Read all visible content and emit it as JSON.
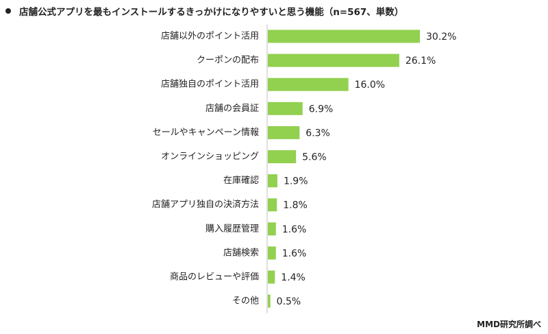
{
  "chart_data": {
    "type": "bar",
    "orientation": "horizontal",
    "title": "店舗公式アプリを最もインストールするきっかけになりやすいと思う機能（n=567、単数）",
    "xlabel": "",
    "ylabel": "",
    "xlim": [
      0,
      35
    ],
    "grid": false,
    "legend": "none",
    "bar_color": "#92d050",
    "axis_color": "#bfbfbf",
    "value_suffix": "%",
    "categories": [
      "店舗以外のポイント活用",
      "クーポンの配布",
      "店舗独自のポイント活用",
      "店舗の会員証",
      "セールやキャンペーン情報",
      "オンラインショッピング",
      "在庫確認",
      "店舗アプリ独自の決済方法",
      "購入履歴管理",
      "店舗検索",
      "商品のレビューや評価",
      "その他"
    ],
    "values": [
      30.2,
      26.1,
      16.0,
      6.9,
      6.3,
      5.6,
      1.9,
      1.8,
      1.6,
      1.6,
      1.4,
      0.5
    ],
    "value_labels": [
      "30.2%",
      "26.1%",
      "16.0%",
      "6.9%",
      "6.3%",
      "5.6%",
      "1.9%",
      "1.8%",
      "1.6%",
      "1.6%",
      "1.4%",
      "0.5%"
    ]
  },
  "source_note": "MMD研究所調べ"
}
